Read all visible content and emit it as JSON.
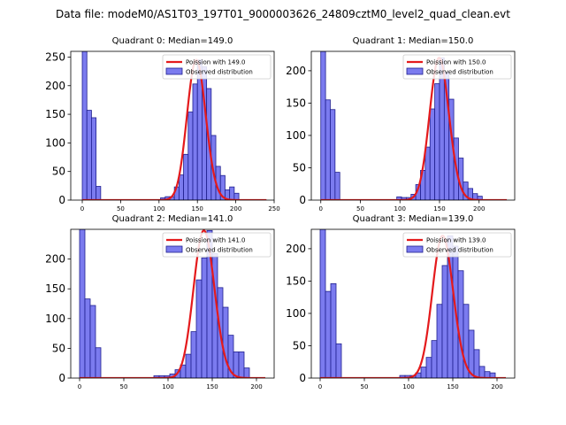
{
  "figure": {
    "suptitle": "Data file: modeM0/AS1T03_197T01_9000003626_24809cztM0_level2_quad_clean.evt",
    "colors": {
      "bar_fill": "#7b7bef",
      "bar_edge": "#1f1f8f",
      "curve": "#e41a1c",
      "legend_edge": "#cccccc"
    }
  },
  "chart_data": [
    {
      "type": "bar",
      "title": "Quadrant 0: Median=149.0",
      "xlim": [
        -15,
        250
      ],
      "ylim": [
        0,
        260
      ],
      "xticks": [
        0,
        50,
        100,
        150,
        200,
        250
      ],
      "yticks": [
        0,
        50,
        100,
        150,
        200,
        250
      ],
      "bin_width": 6,
      "median": 149.0,
      "bins": [
        {
          "x": 0,
          "y": 260
        },
        {
          "x": 6,
          "y": 157
        },
        {
          "x": 12,
          "y": 144
        },
        {
          "x": 18,
          "y": 24
        },
        {
          "x": 102,
          "y": 4
        },
        {
          "x": 108,
          "y": 6
        },
        {
          "x": 114,
          "y": 6
        },
        {
          "x": 120,
          "y": 23
        },
        {
          "x": 126,
          "y": 44
        },
        {
          "x": 132,
          "y": 80
        },
        {
          "x": 138,
          "y": 154
        },
        {
          "x": 144,
          "y": 203
        },
        {
          "x": 150,
          "y": 245
        },
        {
          "x": 156,
          "y": 233
        },
        {
          "x": 162,
          "y": 195
        },
        {
          "x": 168,
          "y": 113
        },
        {
          "x": 174,
          "y": 59
        },
        {
          "x": 180,
          "y": 43
        },
        {
          "x": 186,
          "y": 18
        },
        {
          "x": 192,
          "y": 23
        },
        {
          "x": 198,
          "y": 12
        }
      ],
      "legend": {
        "curve": "Poission with 149.0",
        "bars": "Observed distribution"
      }
    },
    {
      "type": "bar",
      "title": "Quadrant 1: Median=150.0",
      "xlim": [
        -12,
        245
      ],
      "ylim": [
        0,
        230
      ],
      "xticks": [
        0,
        50,
        100,
        150,
        200
      ],
      "yticks": [
        0,
        50,
        100,
        150,
        200
      ],
      "bin_width": 6,
      "median": 150.0,
      "bins": [
        {
          "x": 0,
          "y": 230
        },
        {
          "x": 6,
          "y": 155
        },
        {
          "x": 12,
          "y": 140
        },
        {
          "x": 18,
          "y": 43
        },
        {
          "x": 96,
          "y": 5
        },
        {
          "x": 102,
          "y": 4
        },
        {
          "x": 108,
          "y": 4
        },
        {
          "x": 114,
          "y": 9
        },
        {
          "x": 120,
          "y": 24
        },
        {
          "x": 126,
          "y": 46
        },
        {
          "x": 132,
          "y": 82
        },
        {
          "x": 138,
          "y": 141
        },
        {
          "x": 144,
          "y": 180
        },
        {
          "x": 150,
          "y": 220
        },
        {
          "x": 156,
          "y": 198
        },
        {
          "x": 162,
          "y": 156
        },
        {
          "x": 168,
          "y": 96
        },
        {
          "x": 174,
          "y": 65
        },
        {
          "x": 180,
          "y": 28
        },
        {
          "x": 186,
          "y": 18
        },
        {
          "x": 192,
          "y": 10
        },
        {
          "x": 198,
          "y": 6
        }
      ],
      "legend": {
        "curve": "Poission with 150.0",
        "bars": "Observed distribution"
      }
    },
    {
      "type": "bar",
      "title": "Quadrant 2: Median=141.0",
      "xlim": [
        -10,
        220
      ],
      "ylim": [
        0,
        250
      ],
      "xticks": [
        0,
        50,
        100,
        150,
        200
      ],
      "yticks": [
        0,
        50,
        100,
        150,
        200
      ],
      "bin_width": 6,
      "median": 141.0,
      "bins": [
        {
          "x": 0,
          "y": 250
        },
        {
          "x": 6,
          "y": 133
        },
        {
          "x": 12,
          "y": 122
        },
        {
          "x": 18,
          "y": 51
        },
        {
          "x": 84,
          "y": 4
        },
        {
          "x": 90,
          "y": 4
        },
        {
          "x": 96,
          "y": 4
        },
        {
          "x": 102,
          "y": 7
        },
        {
          "x": 108,
          "y": 14
        },
        {
          "x": 114,
          "y": 22
        },
        {
          "x": 120,
          "y": 40
        },
        {
          "x": 126,
          "y": 78
        },
        {
          "x": 132,
          "y": 165
        },
        {
          "x": 138,
          "y": 202
        },
        {
          "x": 144,
          "y": 248
        },
        {
          "x": 150,
          "y": 209
        },
        {
          "x": 156,
          "y": 152
        },
        {
          "x": 162,
          "y": 119
        },
        {
          "x": 168,
          "y": 72
        },
        {
          "x": 174,
          "y": 44
        },
        {
          "x": 180,
          "y": 44
        },
        {
          "x": 186,
          "y": 17
        }
      ],
      "legend": {
        "curve": "Poission with 141.0",
        "bars": "Observed distribution"
      }
    },
    {
      "type": "bar",
      "title": "Quadrant 3: Median=139.0",
      "xlim": [
        -10,
        220
      ],
      "ylim": [
        0,
        230
      ],
      "xticks": [
        0,
        50,
        100,
        150,
        200
      ],
      "yticks": [
        0,
        50,
        100,
        150,
        200
      ],
      "bin_width": 6,
      "median": 139.0,
      "bins": [
        {
          "x": 0,
          "y": 230
        },
        {
          "x": 6,
          "y": 134
        },
        {
          "x": 12,
          "y": 146
        },
        {
          "x": 18,
          "y": 53
        },
        {
          "x": 90,
          "y": 4
        },
        {
          "x": 96,
          "y": 4
        },
        {
          "x": 102,
          "y": 4
        },
        {
          "x": 108,
          "y": 8
        },
        {
          "x": 114,
          "y": 17
        },
        {
          "x": 120,
          "y": 32
        },
        {
          "x": 126,
          "y": 58
        },
        {
          "x": 132,
          "y": 114
        },
        {
          "x": 138,
          "y": 174
        },
        {
          "x": 144,
          "y": 220
        },
        {
          "x": 150,
          "y": 204
        },
        {
          "x": 156,
          "y": 166
        },
        {
          "x": 162,
          "y": 114
        },
        {
          "x": 168,
          "y": 74
        },
        {
          "x": 174,
          "y": 44
        },
        {
          "x": 180,
          "y": 18
        },
        {
          "x": 186,
          "y": 10
        },
        {
          "x": 192,
          "y": 8
        }
      ],
      "legend": {
        "curve": "Poission with 139.0",
        "bars": "Observed distribution"
      }
    }
  ]
}
